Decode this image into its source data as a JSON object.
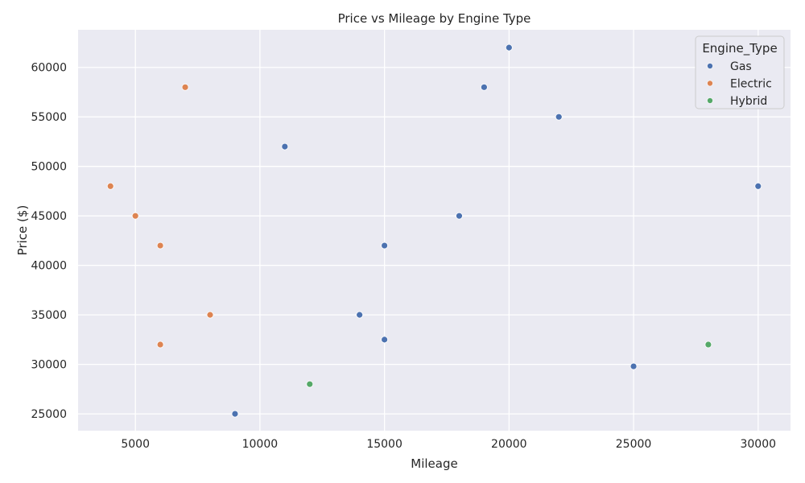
{
  "chart_data": {
    "type": "scatter",
    "title": "Price vs Mileage by Engine Type",
    "xlabel": "Mileage",
    "ylabel": "Price ($)",
    "xlim": [
      2700,
      31300
    ],
    "ylim": [
      23300,
      63800
    ],
    "xticks": [
      5000,
      10000,
      15000,
      20000,
      25000,
      30000
    ],
    "yticks": [
      25000,
      30000,
      35000,
      40000,
      45000,
      50000,
      55000,
      60000
    ],
    "grid": true,
    "background": "#eaeaf2",
    "legend": {
      "title": "Engine_Type",
      "placement": "top-right"
    },
    "series": [
      {
        "name": "Gas",
        "color": "#4c72b0",
        "points": [
          {
            "x": 20000,
            "y": 62000
          },
          {
            "x": 19000,
            "y": 58000
          },
          {
            "x": 22000,
            "y": 55000
          },
          {
            "x": 11000,
            "y": 52000
          },
          {
            "x": 30000,
            "y": 48000
          },
          {
            "x": 18000,
            "y": 45000
          },
          {
            "x": 15000,
            "y": 42000
          },
          {
            "x": 14000,
            "y": 35000
          },
          {
            "x": 15000,
            "y": 32500
          },
          {
            "x": 25000,
            "y": 29800
          },
          {
            "x": 9000,
            "y": 25000
          }
        ]
      },
      {
        "name": "Electric",
        "color": "#dd8452",
        "points": [
          {
            "x": 7000,
            "y": 58000
          },
          {
            "x": 4000,
            "y": 48000
          },
          {
            "x": 5000,
            "y": 45000
          },
          {
            "x": 6000,
            "y": 42000
          },
          {
            "x": 8000,
            "y": 35000
          },
          {
            "x": 6000,
            "y": 32000
          }
        ]
      },
      {
        "name": "Hybrid",
        "color": "#55a868",
        "points": [
          {
            "x": 28000,
            "y": 32000
          },
          {
            "x": 12000,
            "y": 28000
          }
        ]
      }
    ]
  }
}
